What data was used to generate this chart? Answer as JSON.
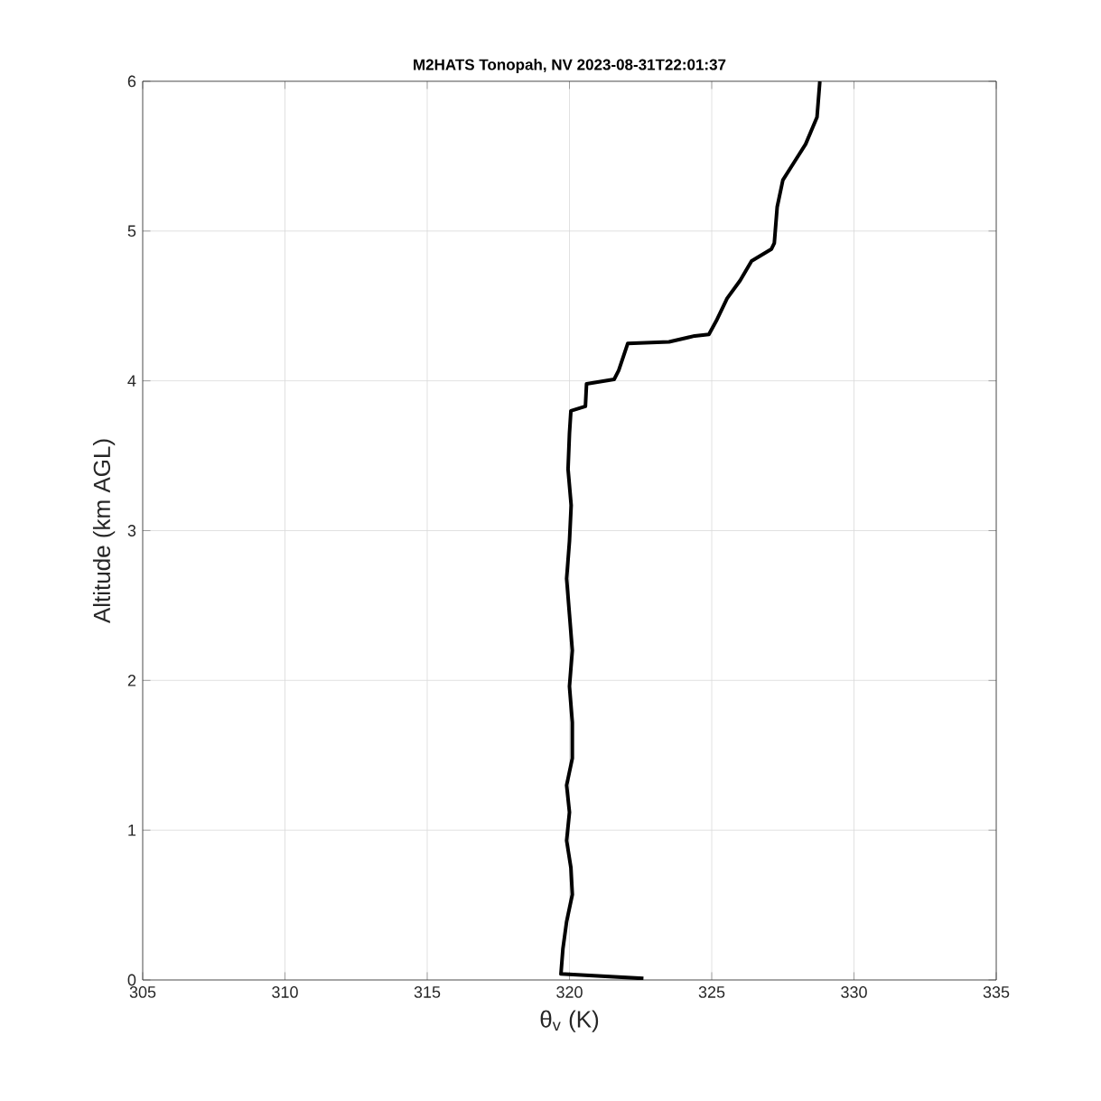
{
  "chart_data": {
    "type": "line",
    "title": "M2HATS Tonopah, NV 2023-08-31T22:01:37",
    "xlabel": "θ$_{v}$ (K)",
    "ylabel": "Altitude (km AGL)",
    "x": [
      322.6,
      319.7,
      319.77,
      319.9,
      320.1,
      320.05,
      319.9,
      320.0,
      319.9,
      320.1,
      320.1,
      320.0,
      320.1,
      320.0,
      319.9,
      320.0,
      320.06,
      319.95,
      320.0,
      320.05,
      320.56,
      320.6,
      321.57,
      321.73,
      322.05,
      323.5,
      324.4,
      324.9,
      325.16,
      325.54,
      326.0,
      326.4,
      327.1,
      327.2,
      327.3,
      327.5,
      327.9,
      328.3,
      328.7,
      328.8
    ],
    "series": [
      {
        "color": "#000000",
        "values": [
          0.01,
          0.04,
          0.21,
          0.39,
          0.57,
          0.75,
          0.93,
          1.12,
          1.3,
          1.48,
          1.72,
          1.96,
          2.2,
          2.44,
          2.68,
          2.93,
          3.17,
          3.41,
          3.65,
          3.8,
          3.83,
          3.98,
          4.01,
          4.07,
          4.25,
          4.26,
          4.3,
          4.31,
          4.4,
          4.55,
          4.67,
          4.8,
          4.88,
          4.92,
          5.16,
          5.34,
          5.46,
          5.58,
          5.76,
          6.0
        ]
      }
    ],
    "xlim": [
      305,
      335
    ],
    "ylim": [
      0,
      6
    ],
    "xticks": [
      305,
      310,
      315,
      320,
      325,
      330,
      335
    ],
    "yticks": [
      0,
      1,
      2,
      3,
      4,
      5,
      6
    ],
    "grid": true,
    "marker": "none",
    "line_style": "solid"
  }
}
